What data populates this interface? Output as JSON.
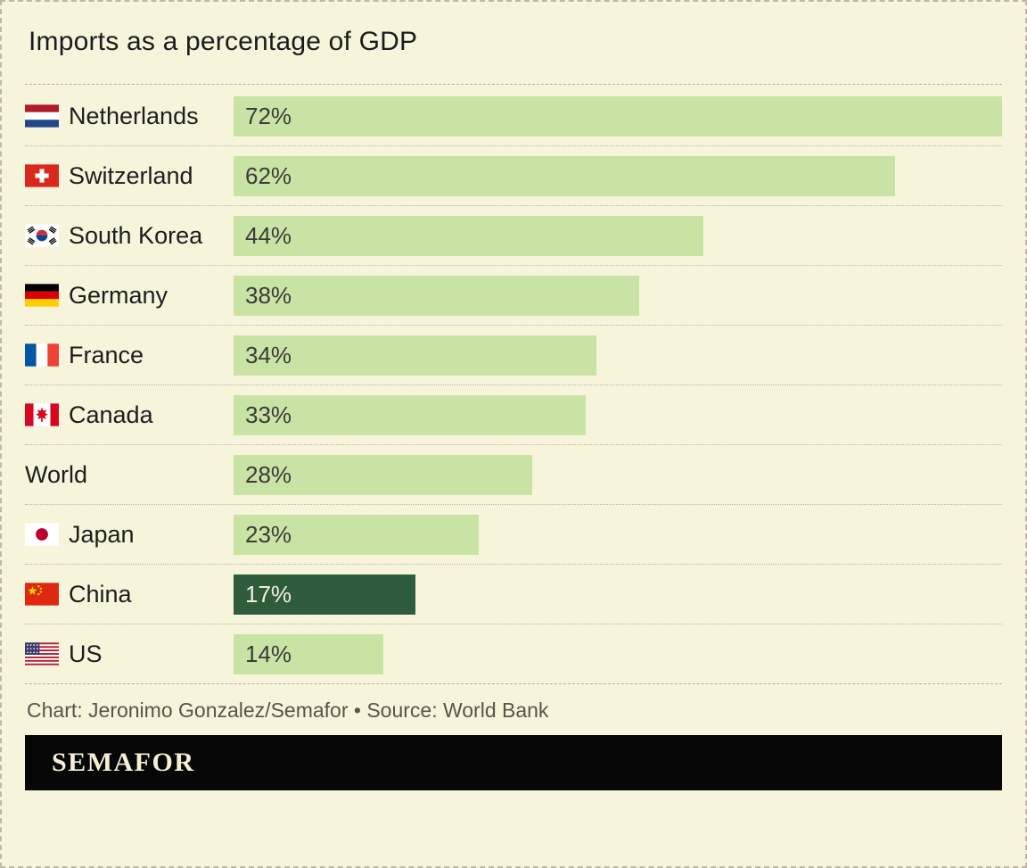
{
  "title": "Imports as a percentage of GDP",
  "footer": {
    "credit": "Chart: Jeronimo Gonzalez/Semafor • Source: World Bank",
    "brand": "SEMAFOR"
  },
  "colors": {
    "background": "#f7f4dc",
    "bar": "#c9e3a4",
    "bar_highlight": "#2e5c3c",
    "value_text": "#3b3b38",
    "value_text_highlight": "#f2f0da",
    "banner": "#070707",
    "brand_text": "#f5efd4"
  },
  "chart_data": {
    "type": "bar",
    "orientation": "horizontal",
    "title": "Imports as a percentage of GDP",
    "xlabel": "",
    "ylabel": "",
    "xmax": 72,
    "grid": false,
    "legend": false,
    "source": "World Bank",
    "categories": [
      "Netherlands",
      "Switzerland",
      "South Korea",
      "Germany",
      "France",
      "Canada",
      "World",
      "Japan",
      "China",
      "US"
    ],
    "values": [
      72,
      62,
      44,
      38,
      34,
      33,
      28,
      23,
      17,
      14
    ],
    "highlight_category": "China",
    "rows": [
      {
        "country": "Netherlands",
        "flag": "netherlands",
        "value": 72,
        "label": "72%",
        "highlight": false
      },
      {
        "country": "Switzerland",
        "flag": "switzerland",
        "value": 62,
        "label": "62%",
        "highlight": false
      },
      {
        "country": "South Korea",
        "flag": "south-korea",
        "value": 44,
        "label": "44%",
        "highlight": false
      },
      {
        "country": "Germany",
        "flag": "germany",
        "value": 38,
        "label": "38%",
        "highlight": false
      },
      {
        "country": "France",
        "flag": "france",
        "value": 34,
        "label": "34%",
        "highlight": false
      },
      {
        "country": "Canada",
        "flag": "canada",
        "value": 33,
        "label": "33%",
        "highlight": false
      },
      {
        "country": "World",
        "flag": "none",
        "value": 28,
        "label": "28%",
        "highlight": false
      },
      {
        "country": "Japan",
        "flag": "japan",
        "value": 23,
        "label": "23%",
        "highlight": false
      },
      {
        "country": "China",
        "flag": "china",
        "value": 17,
        "label": "17%",
        "highlight": true
      },
      {
        "country": "US",
        "flag": "us",
        "value": 14,
        "label": "14%",
        "highlight": false
      }
    ]
  }
}
